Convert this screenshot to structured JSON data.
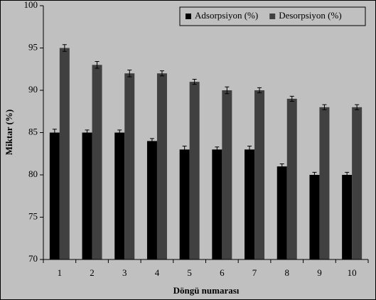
{
  "chart_data": {
    "type": "bar",
    "x_label": "Döngü numarası",
    "y_label": "Miktar (%)",
    "categories": [
      "1",
      "2",
      "3",
      "4",
      "5",
      "6",
      "7",
      "8",
      "9",
      "10"
    ],
    "series": [
      {
        "name": "Adsorpsiyon (%)",
        "color": "#000000",
        "values": [
          85,
          85,
          85,
          84,
          83,
          83,
          83,
          81,
          80,
          80
        ],
        "errors": [
          0.4,
          0.3,
          0.3,
          0.3,
          0.4,
          0.3,
          0.4,
          0.3,
          0.3,
          0.3
        ]
      },
      {
        "name": "Desorpsiyon (%)",
        "color": "#404040",
        "values": [
          95,
          93,
          92,
          92,
          91,
          90,
          90,
          89,
          88,
          88
        ],
        "errors": [
          0.4,
          0.4,
          0.4,
          0.3,
          0.3,
          0.4,
          0.3,
          0.3,
          0.3,
          0.3
        ]
      }
    ],
    "ylim": [
      70,
      100
    ],
    "yticks": [
      70,
      75,
      80,
      85,
      90,
      95,
      100
    ],
    "legend_position": "upper right"
  }
}
